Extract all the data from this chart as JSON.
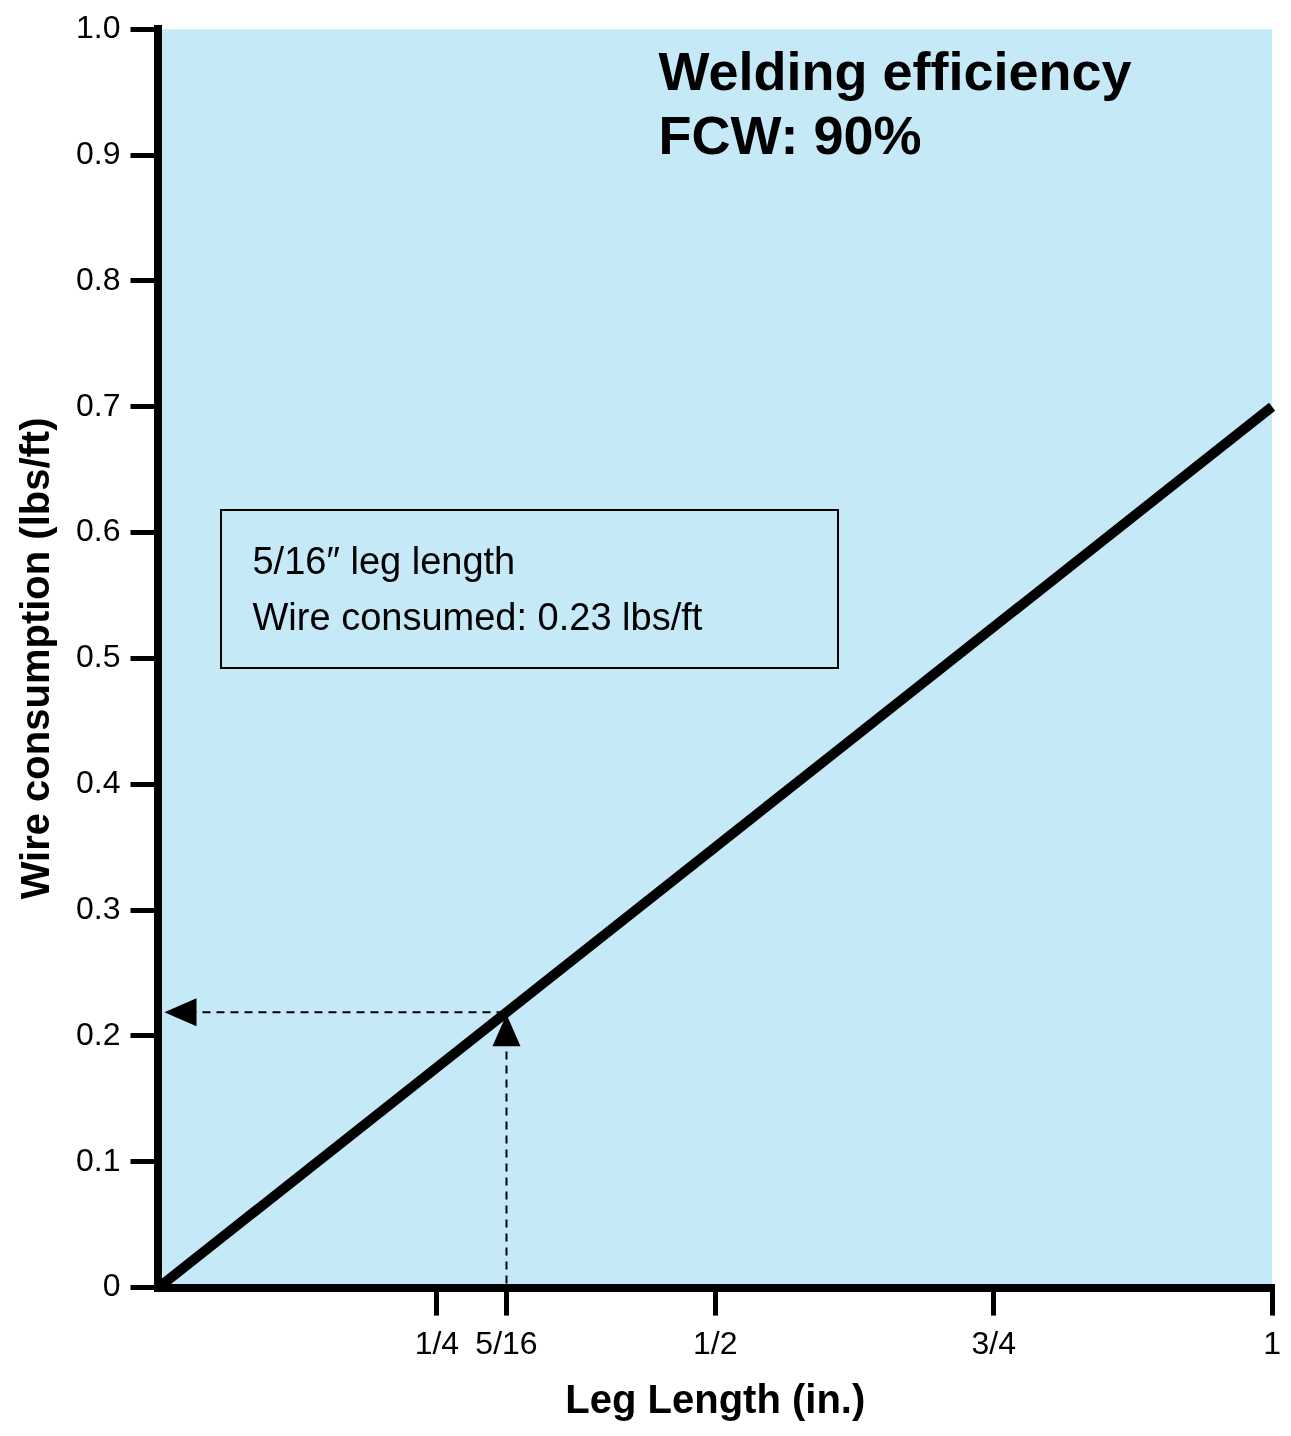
{
  "chart_data": {
    "type": "line",
    "title": "Welding efficiency",
    "subtitle": "FCW: 90%",
    "xlabel": "Leg Length (in.)",
    "ylabel": "Wire consumption (lbs/ft)",
    "x": [
      0,
      1
    ],
    "series": [
      {
        "color": "#000000",
        "values": [
          0,
          0.7
        ]
      }
    ],
    "xlim": [
      0,
      1
    ],
    "ylim": [
      0,
      1
    ],
    "xticks": [
      {
        "value": 0.25,
        "label": "1/4"
      },
      {
        "value": 0.3125,
        "label": "5/16"
      },
      {
        "value": 0.5,
        "label": "1/2"
      },
      {
        "value": 0.75,
        "label": "3/4"
      },
      {
        "value": 1,
        "label": "1"
      }
    ],
    "yticks": [
      0,
      0.1,
      0.2,
      0.3,
      0.4,
      0.5,
      0.6,
      0.7,
      0.8,
      0.9,
      {
        "value": 1,
        "label": "1.0"
      }
    ],
    "annotations": [
      "5/16″ leg length",
      "Wire consumed: 0.23 lbs/ft"
    ],
    "grid": false,
    "legend": false,
    "marker": "none",
    "line_style": "solid"
  }
}
